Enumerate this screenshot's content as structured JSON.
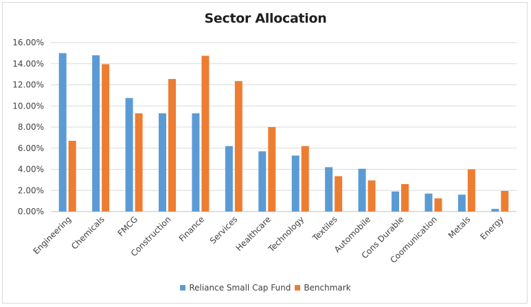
{
  "chart_data": {
    "type": "bar",
    "title": "Sector Allocation",
    "xlabel": "",
    "ylabel": "",
    "ylim": [
      0,
      16
    ],
    "ytick_values": [
      0,
      2,
      4,
      6,
      8,
      10,
      12,
      14,
      16
    ],
    "ytick_labels": [
      "0.00%",
      "2.00%",
      "4.00%",
      "6.00%",
      "8.00%",
      "10.00%",
      "12.00%",
      "14.00%",
      "16.00%"
    ],
    "grid": true,
    "legend_position": "bottom",
    "categories": [
      "Engineering",
      "Chemicals",
      "FMCG",
      "Construction",
      "Finance",
      "Services",
      "Healthcare",
      "Technology",
      "Textiles",
      "Automobile",
      "Cons Durable",
      "Coomunication",
      "Metals",
      "Energy"
    ],
    "series": [
      {
        "name": "Reliance Small Cap Fund",
        "color": "#5b9bd5",
        "values": [
          15.0,
          14.8,
          10.75,
          9.3,
          9.3,
          6.2,
          5.7,
          5.3,
          4.2,
          4.05,
          1.9,
          1.7,
          1.6,
          0.25
        ]
      },
      {
        "name": "Benchmark",
        "color": "#ed7d31",
        "values": [
          6.7,
          13.95,
          9.3,
          12.55,
          14.75,
          12.35,
          8.0,
          6.2,
          3.35,
          2.95,
          2.6,
          1.25,
          4.0,
          1.95
        ]
      }
    ]
  }
}
